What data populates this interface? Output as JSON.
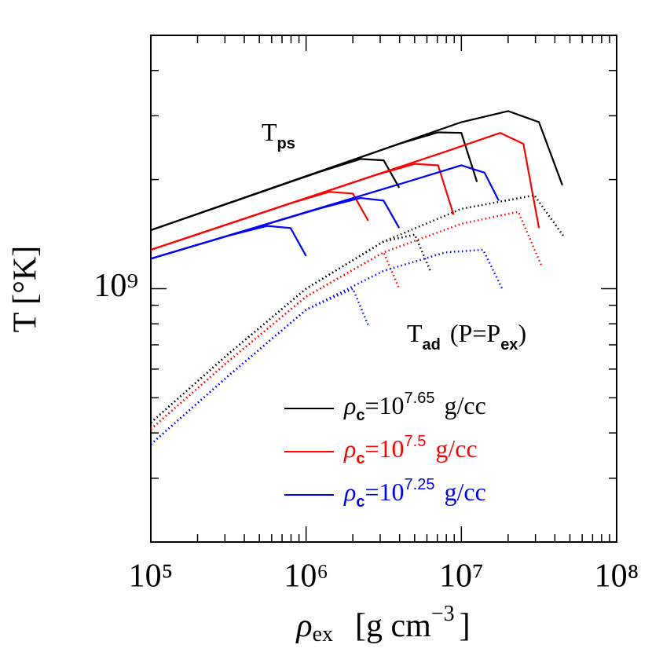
{
  "chart_data": {
    "type": "line",
    "x_label": {
      "symbol": "ρ",
      "sub": "ex",
      "unit": "[g  cm",
      "exp": "−3",
      "close": "]"
    },
    "y_label": "T  [°K]",
    "log_x": true,
    "log_y": true,
    "xlim": [
      100000,
      100000000
    ],
    "ylim": [
      200000000,
      5000000000
    ],
    "xticks": [
      {
        "value": 100000,
        "label": "10⁵"
      },
      {
        "value": 1000000,
        "label": "10⁶"
      },
      {
        "value": 10000000,
        "label": "10⁷"
      },
      {
        "value": 100000000,
        "label": "10⁸"
      }
    ],
    "xminor_ticks": [
      200000,
      300000,
      400000,
      500000,
      600000,
      700000,
      800000,
      900000,
      2000000,
      3000000,
      4000000,
      5000000,
      6000000,
      7000000,
      8000000,
      9000000,
      20000000,
      30000000,
      40000000,
      50000000,
      60000000,
      70000000,
      80000000,
      90000000
    ],
    "yticks": [
      {
        "value": 1000000000,
        "label": "10⁹"
      }
    ],
    "yminor_ticks": [
      300000000,
      400000000,
      500000000,
      600000000,
      700000000,
      800000000,
      900000000,
      2000000000,
      3000000000,
      4000000000
    ],
    "annotations": [
      {
        "base": "T",
        "sub": "ps"
      },
      {
        "base": "T",
        "sub": "ad",
        "rest": "(P=P",
        "sub2": "ex",
        "end": ")"
      }
    ],
    "series": [
      {
        "name": {
          "symbol": "ρ",
          "sub": "c",
          "base": "=10",
          "exp": "7.65",
          "unit": "g/cc"
        },
        "color": "#000000",
        "curves": [
          {
            "x": [
              100000,
              1260000,
              2240000,
              3160000,
              3980000
            ],
            "values": [
              1450000000,
              2110000000,
              2280000000,
              2260000000,
              1900000000
            ]
          },
          {
            "x": [
              100000,
              3980000,
              7080000,
              10000000,
              12600000
            ],
            "values": [
              1450000000,
              2510000000,
              2700000000,
              2690000000,
              1970000000
            ]
          },
          {
            "x": [
              100000,
              10000000,
              20000000,
              31600000,
              44700000
            ],
            "values": [
              1450000000,
              2880000000,
              3090000000,
              2880000000,
              1930000000
            ]
          }
        ],
        "dotted_curves": [
          {
            "x": [
              100000,
              316000,
              1000000,
              3160000,
              5010000,
              6310000
            ],
            "values": [
              427000000,
              661000000,
              1000000000,
              1350000000,
              1410000000,
              1120000000
            ]
          },
          {
            "x": [
              100000,
              316000,
              1000000,
              3160000,
              10000000,
              29500000,
              45300000
            ],
            "values": [
              427000000,
              661000000,
              1000000000,
              1350000000,
              1660000000,
              1810000000,
              1400000000
            ]
          }
        ]
      },
      {
        "name": {
          "symbol": "ρ",
          "sub": "c",
          "base": "=10",
          "exp": "7.5",
          "unit": "g/cc"
        },
        "color": "#ff0000",
        "curves": [
          {
            "x": [
              100000,
              794000,
              1410000,
              2000000,
              2510000
            ],
            "values": [
              1280000000,
              1720000000,
              1850000000,
              1830000000,
              1540000000
            ]
          },
          {
            "x": [
              100000,
              2820000,
              5010000,
              7080000,
              8910000
            ],
            "values": [
              1280000000,
              2060000000,
              2210000000,
              2190000000,
              1600000000
            ]
          },
          {
            "x": [
              100000,
              7940000,
              17800000,
              25100000,
              31600000
            ],
            "values": [
              1280000000,
              2390000000,
              2690000000,
              2510000000,
              1470000000
            ]
          }
        ],
        "dotted_curves": [
          {
            "x": [
              100000,
              316000,
              1000000,
              3160000,
              3980000
            ],
            "values": [
              410000000,
              631000000,
              951000000,
              1260000000,
              1000000000
            ]
          },
          {
            "x": [
              100000,
              316000,
              1000000,
              3160000,
              10000000,
              23300000,
              33000000
            ],
            "values": [
              410000000,
              631000000,
              951000000,
              1260000000,
              1510000000,
              1630000000,
              1150000000
            ]
          }
        ]
      },
      {
        "name": {
          "symbol": "ρ",
          "sub": "c",
          "base": "=10",
          "exp": "7.25",
          "unit": "g/cc"
        },
        "color": "#0000ff",
        "curves": [
          {
            "x": [
              100000,
              316000,
              562000,
              794000,
              1000000
            ],
            "values": [
              1210000000,
              1400000000,
              1490000000,
              1470000000,
              1230000000
            ]
          },
          {
            "x": [
              100000,
              1260000,
              2240000,
              3160000,
              3980000
            ],
            "values": [
              1210000000,
              1670000000,
              1780000000,
              1750000000,
              1470000000
            ]
          },
          {
            "x": [
              100000,
              5010000,
              10000000,
              14100000,
              17400000
            ],
            "values": [
              1210000000,
              2000000000,
              2190000000,
              2090000000,
              1750000000
            ]
          }
        ],
        "dotted_curves": [
          {
            "x": [
              100000,
              316000,
              1000000,
              2000000,
              2510000
            ],
            "values": [
              372000000,
              575000000,
              875000000,
              1000000000,
              794000000
            ]
          },
          {
            "x": [
              100000,
              316000,
              1000000,
              3160000,
              7940000,
              13800000,
              18500000
            ],
            "values": [
              372000000,
              575000000,
              875000000,
              1120000000,
              1260000000,
              1280000000,
              991000000
            ]
          }
        ]
      }
    ]
  }
}
